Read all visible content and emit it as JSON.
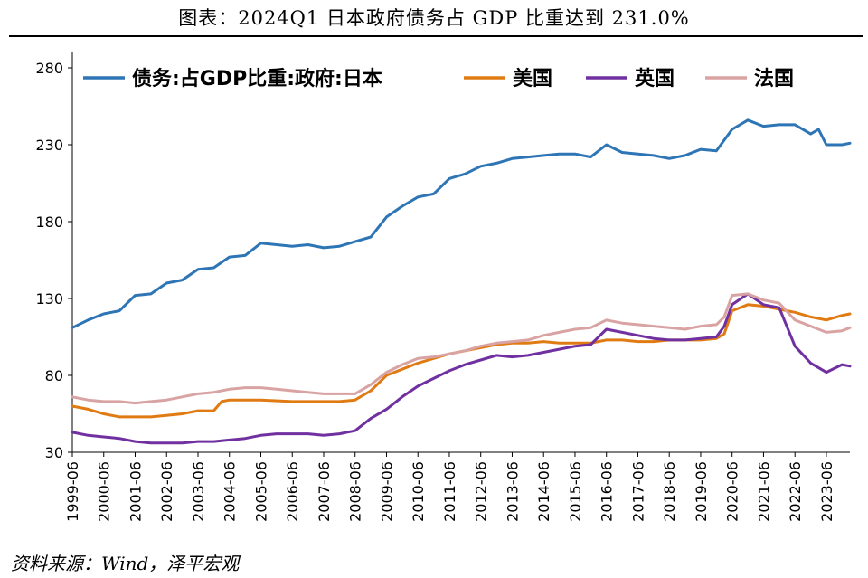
{
  "title": "图表：2024Q1 日本政府债务占 GDP 比重达到 231.0%",
  "source": "资料来源：Wind，泽平宏观",
  "chart_data": {
    "type": "line",
    "ylim": [
      30,
      290
    ],
    "yticks": [
      30,
      80,
      130,
      180,
      230,
      280
    ],
    "x_start": "1999-06",
    "x_end": "2024-03",
    "xticks": [
      "1999-06",
      "2000-06",
      "2001-06",
      "2002-06",
      "2003-06",
      "2004-06",
      "2005-06",
      "2006-06",
      "2007-06",
      "2008-06",
      "2009-06",
      "2010-06",
      "2011-06",
      "2012-06",
      "2013-06",
      "2014-06",
      "2015-06",
      "2016-06",
      "2017-06",
      "2018-06",
      "2019-06",
      "2020-06",
      "2021-06",
      "2022-06",
      "2023-06"
    ],
    "grid": false,
    "legend_position": "top",
    "series": [
      {
        "name": "债务:占GDP比重:政府:日本",
        "color": "#2e75b6",
        "points": [
          [
            "1999-06",
            111
          ],
          [
            "1999-12",
            116
          ],
          [
            "2000-06",
            120
          ],
          [
            "2000-12",
            122
          ],
          [
            "2001-06",
            132
          ],
          [
            "2001-12",
            133
          ],
          [
            "2002-06",
            140
          ],
          [
            "2002-12",
            142
          ],
          [
            "2003-06",
            149
          ],
          [
            "2003-12",
            150
          ],
          [
            "2004-06",
            157
          ],
          [
            "2004-12",
            158
          ],
          [
            "2005-06",
            166
          ],
          [
            "2005-12",
            165
          ],
          [
            "2006-06",
            164
          ],
          [
            "2006-12",
            165
          ],
          [
            "2007-06",
            163
          ],
          [
            "2007-12",
            164
          ],
          [
            "2008-06",
            167
          ],
          [
            "2008-12",
            170
          ],
          [
            "2009-06",
            183
          ],
          [
            "2009-12",
            190
          ],
          [
            "2010-06",
            196
          ],
          [
            "2010-12",
            198
          ],
          [
            "2011-06",
            208
          ],
          [
            "2011-12",
            211
          ],
          [
            "2012-06",
            216
          ],
          [
            "2012-12",
            218
          ],
          [
            "2013-06",
            221
          ],
          [
            "2013-12",
            222
          ],
          [
            "2014-06",
            223
          ],
          [
            "2014-12",
            224
          ],
          [
            "2015-06",
            224
          ],
          [
            "2015-12",
            222
          ],
          [
            "2016-06",
            230
          ],
          [
            "2016-12",
            225
          ],
          [
            "2017-06",
            224
          ],
          [
            "2017-12",
            223
          ],
          [
            "2018-06",
            221
          ],
          [
            "2018-12",
            223
          ],
          [
            "2019-06",
            227
          ],
          [
            "2019-12",
            226
          ],
          [
            "2020-06",
            240
          ],
          [
            "2020-12",
            246
          ],
          [
            "2021-06",
            242
          ],
          [
            "2021-12",
            243
          ],
          [
            "2022-06",
            243
          ],
          [
            "2022-12",
            237
          ],
          [
            "2023-03",
            240
          ],
          [
            "2023-06",
            230
          ],
          [
            "2023-12",
            230
          ],
          [
            "2024-03",
            231
          ]
        ]
      },
      {
        "name": "美国",
        "color": "#e07b14",
        "points": [
          [
            "1999-06",
            60
          ],
          [
            "1999-12",
            58
          ],
          [
            "2000-06",
            55
          ],
          [
            "2000-12",
            53
          ],
          [
            "2001-06",
            53
          ],
          [
            "2001-12",
            53
          ],
          [
            "2002-06",
            54
          ],
          [
            "2002-12",
            55
          ],
          [
            "2003-06",
            57
          ],
          [
            "2003-12",
            57
          ],
          [
            "2004-03",
            63
          ],
          [
            "2004-06",
            64
          ],
          [
            "2005-06",
            64
          ],
          [
            "2006-06",
            63
          ],
          [
            "2007-06",
            63
          ],
          [
            "2007-12",
            63
          ],
          [
            "2008-06",
            64
          ],
          [
            "2008-12",
            70
          ],
          [
            "2009-06",
            80
          ],
          [
            "2009-12",
            84
          ],
          [
            "2010-06",
            88
          ],
          [
            "2010-12",
            91
          ],
          [
            "2011-06",
            94
          ],
          [
            "2011-12",
            96
          ],
          [
            "2012-06",
            98
          ],
          [
            "2012-12",
            100
          ],
          [
            "2013-06",
            101
          ],
          [
            "2013-12",
            101
          ],
          [
            "2014-06",
            102
          ],
          [
            "2014-12",
            101
          ],
          [
            "2015-06",
            101
          ],
          [
            "2015-12",
            101
          ],
          [
            "2016-06",
            103
          ],
          [
            "2016-12",
            103
          ],
          [
            "2017-06",
            102
          ],
          [
            "2017-12",
            102
          ],
          [
            "2018-06",
            103
          ],
          [
            "2018-12",
            103
          ],
          [
            "2019-06",
            103
          ],
          [
            "2019-12",
            104
          ],
          [
            "2020-03",
            107
          ],
          [
            "2020-06",
            122
          ],
          [
            "2020-12",
            126
          ],
          [
            "2021-06",
            125
          ],
          [
            "2021-12",
            123
          ],
          [
            "2022-06",
            121
          ],
          [
            "2022-12",
            118
          ],
          [
            "2023-06",
            116
          ],
          [
            "2023-12",
            119
          ],
          [
            "2024-03",
            120
          ]
        ]
      },
      {
        "name": "英国",
        "color": "#7030a0",
        "points": [
          [
            "1999-06",
            43
          ],
          [
            "1999-12",
            41
          ],
          [
            "2000-06",
            40
          ],
          [
            "2000-12",
            39
          ],
          [
            "2001-06",
            37
          ],
          [
            "2001-12",
            36
          ],
          [
            "2002-06",
            36
          ],
          [
            "2002-12",
            36
          ],
          [
            "2003-06",
            37
          ],
          [
            "2003-12",
            37
          ],
          [
            "2004-06",
            38
          ],
          [
            "2004-12",
            39
          ],
          [
            "2005-06",
            41
          ],
          [
            "2005-12",
            42
          ],
          [
            "2006-06",
            42
          ],
          [
            "2006-12",
            42
          ],
          [
            "2007-06",
            41
          ],
          [
            "2007-12",
            42
          ],
          [
            "2008-06",
            44
          ],
          [
            "2008-12",
            52
          ],
          [
            "2009-06",
            58
          ],
          [
            "2009-12",
            66
          ],
          [
            "2010-06",
            73
          ],
          [
            "2010-12",
            78
          ],
          [
            "2011-06",
            83
          ],
          [
            "2011-12",
            87
          ],
          [
            "2012-06",
            90
          ],
          [
            "2012-12",
            93
          ],
          [
            "2013-06",
            92
          ],
          [
            "2013-12",
            93
          ],
          [
            "2014-06",
            95
          ],
          [
            "2014-12",
            97
          ],
          [
            "2015-06",
            99
          ],
          [
            "2015-12",
            100
          ],
          [
            "2016-06",
            110
          ],
          [
            "2016-12",
            108
          ],
          [
            "2017-06",
            106
          ],
          [
            "2017-12",
            104
          ],
          [
            "2018-06",
            103
          ],
          [
            "2018-12",
            103
          ],
          [
            "2019-06",
            104
          ],
          [
            "2019-12",
            105
          ],
          [
            "2020-03",
            112
          ],
          [
            "2020-06",
            126
          ],
          [
            "2020-12",
            133
          ],
          [
            "2021-06",
            126
          ],
          [
            "2021-12",
            124
          ],
          [
            "2022-06",
            99
          ],
          [
            "2022-12",
            88
          ],
          [
            "2023-06",
            82
          ],
          [
            "2023-12",
            87
          ],
          [
            "2024-03",
            86
          ]
        ]
      },
      {
        "name": "法国",
        "color": "#d9a3a3",
        "points": [
          [
            "1999-06",
            66
          ],
          [
            "1999-12",
            64
          ],
          [
            "2000-06",
            63
          ],
          [
            "2000-12",
            63
          ],
          [
            "2001-06",
            62
          ],
          [
            "2001-12",
            63
          ],
          [
            "2002-06",
            64
          ],
          [
            "2002-12",
            66
          ],
          [
            "2003-06",
            68
          ],
          [
            "2003-12",
            69
          ],
          [
            "2004-06",
            71
          ],
          [
            "2004-12",
            72
          ],
          [
            "2005-06",
            72
          ],
          [
            "2005-12",
            71
          ],
          [
            "2006-06",
            70
          ],
          [
            "2006-12",
            69
          ],
          [
            "2007-06",
            68
          ],
          [
            "2007-12",
            68
          ],
          [
            "2008-06",
            68
          ],
          [
            "2008-12",
            74
          ],
          [
            "2009-06",
            82
          ],
          [
            "2009-12",
            87
          ],
          [
            "2010-06",
            91
          ],
          [
            "2010-12",
            92
          ],
          [
            "2011-06",
            94
          ],
          [
            "2011-12",
            96
          ],
          [
            "2012-06",
            99
          ],
          [
            "2012-12",
            101
          ],
          [
            "2013-06",
            102
          ],
          [
            "2013-12",
            103
          ],
          [
            "2014-06",
            106
          ],
          [
            "2014-12",
            108
          ],
          [
            "2015-06",
            110
          ],
          [
            "2015-12",
            111
          ],
          [
            "2016-06",
            116
          ],
          [
            "2016-12",
            114
          ],
          [
            "2017-06",
            113
          ],
          [
            "2017-12",
            112
          ],
          [
            "2018-06",
            111
          ],
          [
            "2018-12",
            110
          ],
          [
            "2019-06",
            112
          ],
          [
            "2019-12",
            113
          ],
          [
            "2020-03",
            118
          ],
          [
            "2020-06",
            132
          ],
          [
            "2020-12",
            133
          ],
          [
            "2021-06",
            129
          ],
          [
            "2021-12",
            127
          ],
          [
            "2022-06",
            116
          ],
          [
            "2022-12",
            112
          ],
          [
            "2023-06",
            108
          ],
          [
            "2023-12",
            109
          ],
          [
            "2024-03",
            111
          ]
        ]
      }
    ]
  }
}
